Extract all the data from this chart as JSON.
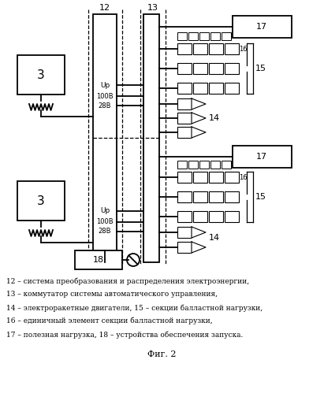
{
  "fig_width": 4.11,
  "fig_height": 4.99,
  "dpi": 100,
  "bg_color": "#ffffff",
  "legend_lines": [
    "12 – система преобразования и распределения электроэнергии,",
    "13 – коммутатор системы автоматического управления,",
    "14 – электроракетные двигатели, 15 – секции балластной нагрузки,",
    "16 – единичный элемент секции балластной нагрузки,",
    "17 – полезная нагрузка, 18 – устройства обеспечения запуска."
  ],
  "fig_label": "Фиг. 2"
}
